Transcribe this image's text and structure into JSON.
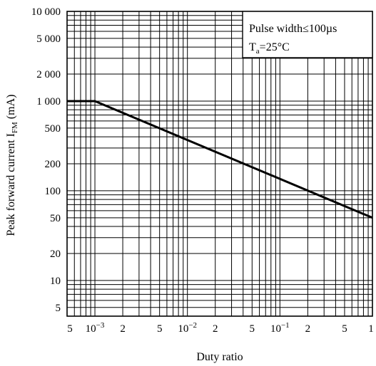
{
  "chart_data": {
    "type": "line",
    "title": "",
    "xlabel": "Duty ratio",
    "ylabel": "Peak forward current",
    "ylabel_symbol": "I",
    "ylabel_subscript": "FM",
    "ylabel_unit": "(mA)",
    "x_scale": "log",
    "y_scale": "log",
    "xlim": [
      0.0005,
      1
    ],
    "ylim": [
      4,
      10000
    ],
    "grid": true,
    "x_ticks": [
      {
        "value": 0.0005,
        "label": "5"
      },
      {
        "value": 0.001,
        "label": "10",
        "exponent": "−3"
      },
      {
        "value": 0.002,
        "label": "2"
      },
      {
        "value": 0.005,
        "label": "5"
      },
      {
        "value": 0.01,
        "label": "10",
        "exponent": "−2"
      },
      {
        "value": 0.02,
        "label": "2"
      },
      {
        "value": 0.05,
        "label": "5"
      },
      {
        "value": 0.1,
        "label": "10",
        "exponent": "−1"
      },
      {
        "value": 0.2,
        "label": "2"
      },
      {
        "value": 0.5,
        "label": "5"
      },
      {
        "value": 1,
        "label": "1"
      }
    ],
    "y_ticks": [
      {
        "value": 5,
        "label": "5"
      },
      {
        "value": 10,
        "label": "10"
      },
      {
        "value": 20,
        "label": "20"
      },
      {
        "value": 50,
        "label": "50"
      },
      {
        "value": 100,
        "label": "100"
      },
      {
        "value": 200,
        "label": "200"
      },
      {
        "value": 500,
        "label": "500"
      },
      {
        "value": 1000,
        "label": "1 000"
      },
      {
        "value": 2000,
        "label": "2 000"
      },
      {
        "value": 5000,
        "label": "5 000"
      },
      {
        "value": 10000,
        "label": "10 000"
      }
    ],
    "series": [
      {
        "x": [
          0.0005,
          0.001,
          1
        ],
        "y": [
          1000,
          1000,
          50
        ],
        "color": "#000000"
      }
    ],
    "legend": {
      "placement": "top-right",
      "line1": "Pulse width≤100µs",
      "line2_symbol": "T",
      "line2_subscript": "a",
      "line2_value": "=25°C"
    }
  }
}
